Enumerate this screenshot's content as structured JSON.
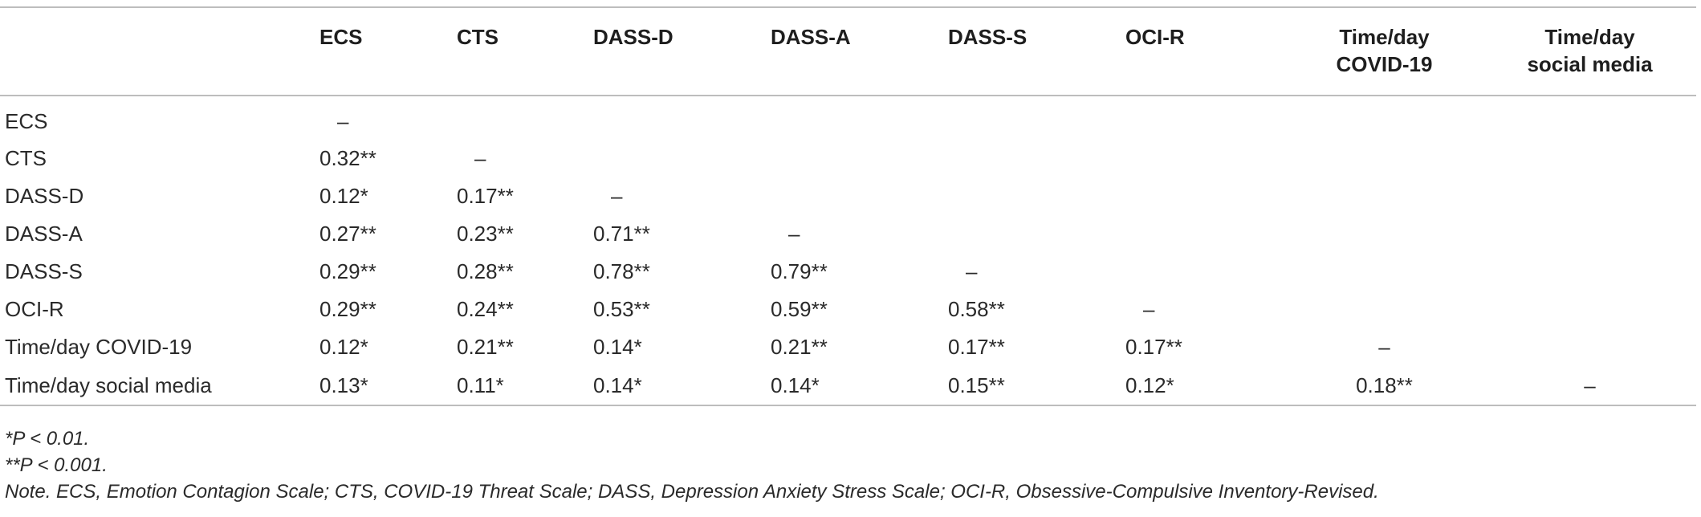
{
  "table": {
    "headers": [
      "",
      "ECS",
      "CTS",
      "DASS-D",
      "DASS-A",
      "DASS-S",
      "OCI-R",
      "Time/day COVID-19",
      "Time/day social media"
    ],
    "headers_lines": [
      [
        ""
      ],
      [
        "ECS"
      ],
      [
        "CTS"
      ],
      [
        "DASS-D"
      ],
      [
        "DASS-A"
      ],
      [
        "DASS-S"
      ],
      [
        "OCI-R"
      ],
      [
        "Time/day",
        "COVID-19"
      ],
      [
        "Time/day",
        "social media"
      ]
    ],
    "rows": [
      {
        "label": "ECS",
        "cells": [
          "–",
          "",
          "",
          "",
          "",
          "",
          "",
          ""
        ]
      },
      {
        "label": "CTS",
        "cells": [
          "0.32**",
          "–",
          "",
          "",
          "",
          "",
          "",
          ""
        ]
      },
      {
        "label": "DASS-D",
        "cells": [
          "0.12*",
          "0.17**",
          "–",
          "",
          "",
          "",
          "",
          ""
        ]
      },
      {
        "label": "DASS-A",
        "cells": [
          "0.27**",
          "0.23**",
          "0.71**",
          "–",
          "",
          "",
          "",
          ""
        ]
      },
      {
        "label": "DASS-S",
        "cells": [
          "0.29**",
          "0.28**",
          "0.78**",
          "0.79**",
          "–",
          "",
          "",
          ""
        ]
      },
      {
        "label": "OCI-R",
        "cells": [
          "0.29**",
          "0.24**",
          "0.53**",
          "0.59**",
          "0.58**",
          "–",
          "",
          ""
        ]
      },
      {
        "label": "Time/day COVID-19",
        "cells": [
          "0.12*",
          "0.21**",
          "0.14*",
          "0.21**",
          "0.17**",
          "0.17**",
          "–",
          ""
        ]
      },
      {
        "label": "Time/day social media",
        "cells": [
          "0.13*",
          "0.11*",
          "0.14*",
          "0.14*",
          "0.15**",
          "0.12*",
          "0.18**",
          "–"
        ]
      }
    ]
  },
  "notes": [
    "*P < 0.01.",
    "**P < 0.001.",
    "Note. ECS, Emotion Contagion Scale; CTS, COVID-19 Threat Scale; DASS, Depression Anxiety Stress Scale; OCI-R, Obsessive-Compulsive Inventory-Revised."
  ]
}
